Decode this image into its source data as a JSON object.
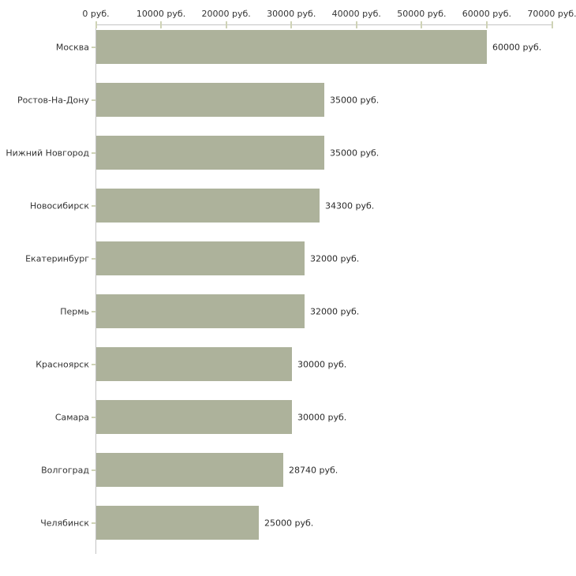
{
  "chart_data": {
    "type": "bar",
    "orientation": "horizontal",
    "title": "",
    "xlabel": "",
    "ylabel": "",
    "categories": [
      "Москва",
      "Ростов-На-Дону",
      "Нижний Новгород",
      "Новосибирск",
      "Екатеринбург",
      "Пермь",
      "Красноярск",
      "Самара",
      "Волгоград",
      "Челябинск"
    ],
    "values": [
      60000,
      35000,
      35000,
      34300,
      32000,
      32000,
      30000,
      30000,
      28740,
      25000
    ],
    "value_labels": [
      "60000 руб.",
      "35000 руб.",
      "35000 руб.",
      "34300 руб.",
      "32000 руб.",
      "32000 руб.",
      "30000 руб.",
      "30000 руб.",
      "28740 руб.",
      "25000 руб."
    ],
    "x_axis": {
      "position": "top",
      "min": 0,
      "max": 70000,
      "ticks": [
        0,
        10000,
        20000,
        30000,
        40000,
        50000,
        60000,
        70000
      ],
      "tick_labels": [
        "0 руб.",
        "10000 руб.",
        "20000 руб.",
        "30000 руб.",
        "40000 руб.",
        "50000 руб.",
        "60000 руб.",
        "70000 руб."
      ]
    },
    "grid": false,
    "legend": false,
    "colors": {
      "bar": "#adb29b",
      "axis_line": "#c4c4c4",
      "tick_mark": "#cfd3b6",
      "text": "#333333",
      "background": "#ffffff"
    }
  }
}
